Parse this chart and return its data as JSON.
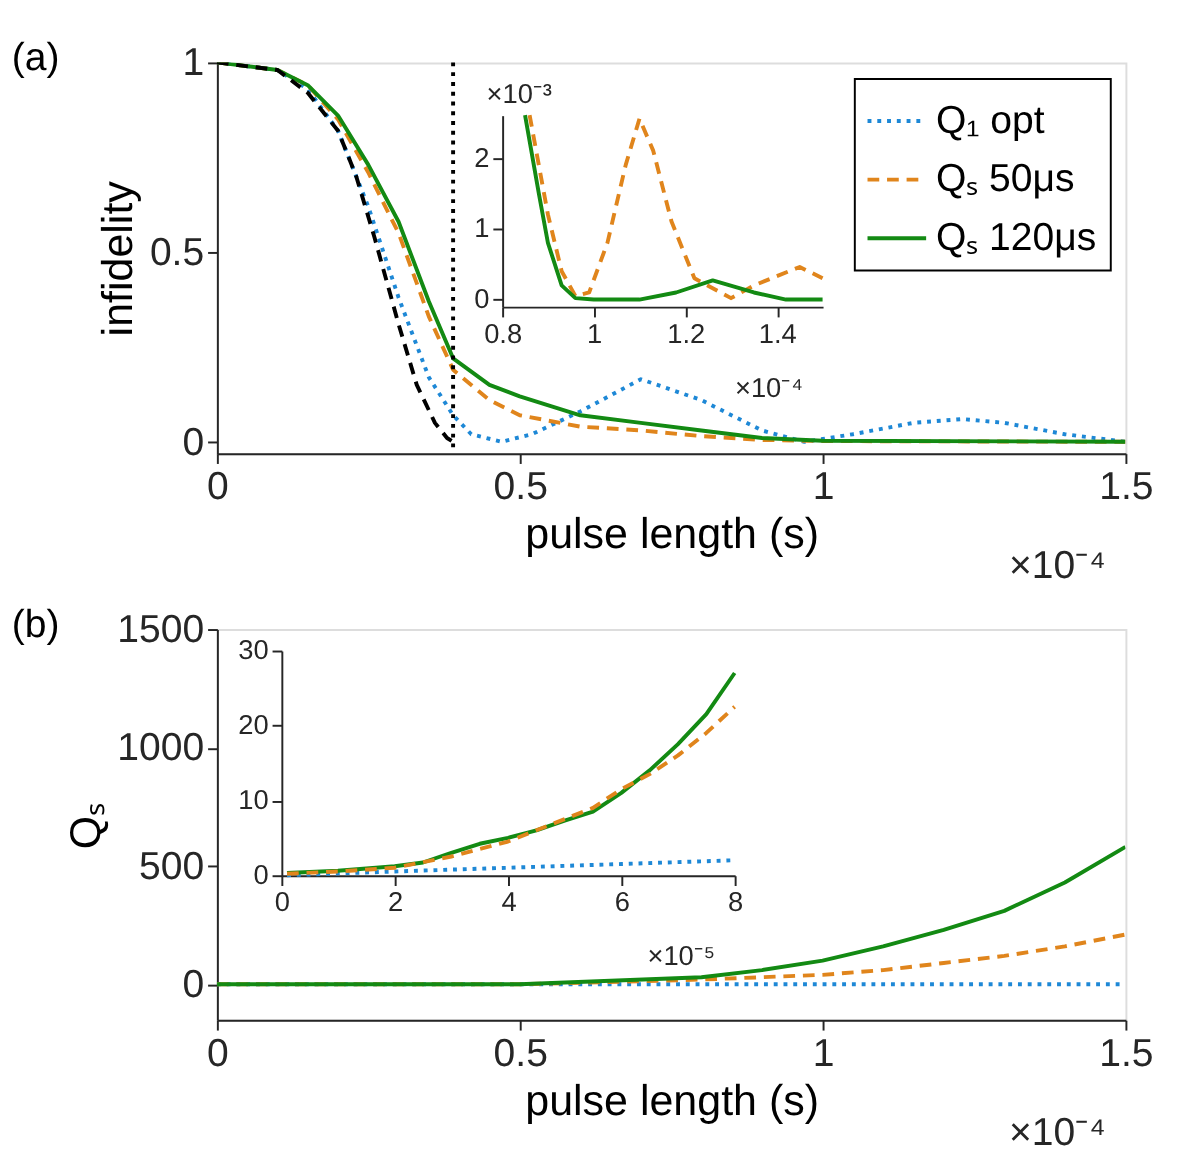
{
  "chart_data": [
    {
      "type": "line",
      "title": "(a)",
      "xlabel": "pulse length (s)",
      "ylabel": "infidelity",
      "xlim": [
        0,
        1.5
      ],
      "xticks": [
        0,
        0.5,
        1,
        1.5
      ],
      "ylim": [
        -0.03,
        1
      ],
      "yticks": [
        0,
        0.5,
        1
      ],
      "grid": false,
      "legend": "top right",
      "annotations": [
        "×10⁻⁴"
      ],
      "ref_lines": [
        {
          "axis": "x",
          "value": 0.39,
          "color": "#000000",
          "line_style": "dotted"
        }
      ],
      "series": [
        {
          "name": "Q₁ opt",
          "color": "#1e88d6",
          "line_style": "dotted",
          "x": [
            0,
            0.1,
            0.15,
            0.2,
            0.25,
            0.3,
            0.35,
            0.39,
            0.42,
            0.47,
            0.52,
            0.6,
            0.7,
            0.8,
            0.9,
            0.97,
            1.05,
            1.15,
            1.23,
            1.3,
            1.4,
            1.5
          ],
          "values": [
            1,
            0.98,
            0.93,
            0.82,
            0.62,
            0.38,
            0.17,
            0.07,
            0.02,
            0,
            0.02,
            0.08,
            0.165,
            0.11,
            0.03,
            0,
            0.02,
            0.05,
            0.06,
            0.05,
            0.02,
            0
          ]
        },
        {
          "name": "Qₛ 50μs",
          "color": "#e0851c",
          "line_style": "dashed",
          "x": [
            0,
            0.1,
            0.15,
            0.2,
            0.25,
            0.3,
            0.35,
            0.39,
            0.45,
            0.5,
            0.6,
            0.7,
            0.8,
            0.9,
            1.0,
            1.5
          ],
          "values": [
            1,
            0.98,
            0.94,
            0.85,
            0.71,
            0.55,
            0.33,
            0.19,
            0.11,
            0.07,
            0.04,
            0.03,
            0.015,
            0.005,
            0.002,
            0
          ]
        },
        {
          "name": "Qₛ 120μs",
          "color": "#138a13",
          "line_style": "solid",
          "x": [
            0,
            0.1,
            0.15,
            0.2,
            0.25,
            0.3,
            0.35,
            0.39,
            0.45,
            0.5,
            0.6,
            0.7,
            0.8,
            0.9,
            1.0,
            1.5
          ],
          "values": [
            1,
            0.98,
            0.94,
            0.86,
            0.73,
            0.58,
            0.37,
            0.22,
            0.15,
            0.12,
            0.07,
            0.05,
            0.03,
            0.01,
            0.003,
            0
          ]
        },
        {
          "color": "#000000",
          "line_style": "dashed",
          "x": [
            0,
            0.1,
            0.15,
            0.2,
            0.23,
            0.26,
            0.3,
            0.33,
            0.36,
            0.38,
            0.39
          ],
          "values": [
            1,
            0.98,
            0.92,
            0.82,
            0.7,
            0.54,
            0.31,
            0.15,
            0.05,
            0.01,
            0
          ]
        }
      ]
    },
    {
      "type": "line",
      "xlim": [
        0.8,
        1.5
      ],
      "xticks": [
        0.8,
        1,
        1.2,
        1.4
      ],
      "ylim": [
        -0.1,
        2.6
      ],
      "yticks": [
        0,
        1,
        2
      ],
      "grid": false,
      "annotations": [
        "×10⁻³",
        "×10⁻⁴"
      ],
      "series": [
        {
          "color": "#e0851c",
          "line_style": "dashed",
          "x": [
            0.86,
            0.9,
            0.93,
            0.96,
            0.99,
            1.03,
            1.07,
            1.1,
            1.13,
            1.17,
            1.22,
            1.3,
            1.35,
            1.45,
            1.5
          ],
          "values": [
            2.6,
            1.2,
            0.4,
            0.05,
            0.1,
            0.8,
            1.9,
            2.55,
            2.1,
            1.1,
            0.3,
            0.02,
            0.2,
            0.46,
            0.3
          ]
        },
        {
          "color": "#138a13",
          "line_style": "solid",
          "x": [
            0.85,
            0.88,
            0.9,
            0.93,
            0.96,
            1.0,
            1.1,
            1.18,
            1.26,
            1.35,
            1.42,
            1.5
          ],
          "values": [
            2.6,
            1.5,
            0.8,
            0.2,
            0.02,
            0,
            0,
            0.1,
            0.27,
            0.1,
            0,
            0
          ]
        }
      ]
    },
    {
      "type": "line",
      "title": "(b)",
      "xlabel": "pulse length (s)",
      "ylabel": "Qₛ",
      "xlim": [
        0,
        1.5
      ],
      "xticks": [
        0,
        0.5,
        1,
        1.5
      ],
      "ylim": [
        -150,
        1500
      ],
      "yticks": [
        0,
        500,
        1000,
        1500
      ],
      "grid": false,
      "legend": "top right",
      "annotations": [
        "×10⁻⁴"
      ],
      "series": [
        {
          "name": "Q₁ opt",
          "color": "#1e88d6",
          "line_style": "dotted",
          "x": [
            0,
            0.5,
            1,
            1.5
          ],
          "values": [
            0,
            0,
            0,
            0
          ]
        },
        {
          "name": "Qₛ 50μs",
          "color": "#e0851c",
          "line_style": "dashed",
          "x": [
            0,
            0.5,
            0.8,
            0.9,
            1,
            1.1,
            1.2,
            1.3,
            1.4,
            1.5
          ],
          "values": [
            0,
            0,
            20,
            30,
            40,
            60,
            90,
            120,
            160,
            210
          ]
        },
        {
          "name": "Qₛ 120μs",
          "color": "#138a13",
          "line_style": "solid",
          "x": [
            0,
            0.5,
            0.8,
            0.9,
            1,
            1.1,
            1.2,
            1.3,
            1.4,
            1.5
          ],
          "values": [
            0,
            0,
            30,
            60,
            100,
            160,
            230,
            310,
            430,
            580
          ]
        }
      ]
    },
    {
      "type": "line",
      "xlim": [
        0,
        8
      ],
      "xticks": [
        0,
        2,
        4,
        6,
        8
      ],
      "ylim": [
        0,
        30
      ],
      "yticks": [
        0,
        10,
        20,
        30
      ],
      "grid": false,
      "annotations": [
        "×10⁻⁵"
      ],
      "series": [
        {
          "color": "#1e88d6",
          "line_style": "dotted",
          "x": [
            0.1,
            2,
            4,
            6,
            8
          ],
          "values": [
            0,
            0.5,
            1,
            1.5,
            2
          ]
        },
        {
          "color": "#138a13",
          "line_style": "solid",
          "x": [
            0.1,
            1,
            2,
            2.5,
            3,
            3.5,
            4,
            4.5,
            5,
            5.5,
            6,
            6.5,
            7,
            7.5,
            8
          ],
          "values": [
            0.3,
            0.6,
            1.2,
            1.7,
            3,
            4.2,
            5,
            6,
            7.3,
            8.5,
            11,
            14,
            17.5,
            21.5,
            27
          ]
        },
        {
          "color": "#e0851c",
          "line_style": "dashed",
          "x": [
            0.1,
            1,
            2,
            3,
            4,
            5,
            5.5,
            6,
            6.5,
            7,
            7.5,
            8
          ],
          "values": [
            0.2,
            0.5,
            1,
            2.5,
            4.5,
            7.5,
            9,
            11.5,
            13.5,
            16,
            19,
            22.5
          ]
        }
      ]
    }
  ]
}
